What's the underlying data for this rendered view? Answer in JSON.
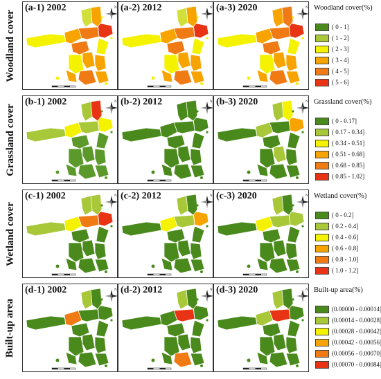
{
  "rows": [
    {
      "label": "Woodland cover",
      "panels": [
        {
          "title": "(a-1) 2002",
          "colors": [
            "#f5f200",
            "#f7a400",
            "#f07a14",
            "#e83414",
            "#f7a400",
            "#d2df3a",
            "#f5f200",
            "#f07a14",
            "#f7a400",
            "#f7a400",
            "#f5f200",
            "#f07a14",
            "#f7a400",
            "#f7a400"
          ]
        },
        {
          "title": "(a-2) 2012",
          "colors": [
            "#f5f200",
            "#f7a400",
            "#f07a14",
            "#e83414",
            "#f7a400",
            "#d2df3a",
            "#f5f200",
            "#f07a14",
            "#f7a400",
            "#f7a400",
            "#f5f200",
            "#f07a14",
            "#f7a400",
            "#f7a400"
          ]
        },
        {
          "title": "(a-3) 2020",
          "colors": [
            "#f5f200",
            "#f7a400",
            "#f07a14",
            "#e83414",
            "#f07a14",
            "#f7a400",
            "#f5f200",
            "#f07a14",
            "#f7a400",
            "#f7a400",
            "#f5f200",
            "#f07a14",
            "#f7a400",
            "#f7a400"
          ]
        }
      ],
      "legend_title": "Woodland cover(%)",
      "legend": [
        {
          "label": "( 0 - 1]",
          "color": "#4a8a1c"
        },
        {
          "label": "( 1 - 2]",
          "color": "#a8c83a"
        },
        {
          "label": "( 2 - 3]",
          "color": "#f5f200"
        },
        {
          "label": "( 3 - 4]",
          "color": "#f7a400"
        },
        {
          "label": "( 4 - 5]",
          "color": "#f07a14"
        },
        {
          "label": "( 5 - 6]",
          "color": "#e83414"
        }
      ]
    },
    {
      "label": "Grassland cover",
      "panels": [
        {
          "title": "(b-1) 2002",
          "colors": [
            "#a8c83a",
            "#f5f200",
            "#a8c83a",
            "#f5f200",
            "#e83414",
            "#a8c83a",
            "#5b9a2a",
            "#5b9a2a",
            "#5b9a2a",
            "#5b9a2a",
            "#5b9a2a",
            "#5b9a2a",
            "#5b9a2a",
            "#5b9a2a"
          ]
        },
        {
          "title": "(b-2) 2012",
          "colors": [
            "#4a8a1c",
            "#4a8a1c",
            "#4a8a1c",
            "#4a8a1c",
            "#4a8a1c",
            "#4a8a1c",
            "#4a8a1c",
            "#4a8a1c",
            "#4a8a1c",
            "#4a8a1c",
            "#4a8a1c",
            "#4a8a1c",
            "#4a8a1c",
            "#4a8a1c"
          ]
        },
        {
          "title": "(b-3) 2020",
          "colors": [
            "#4a8a1c",
            "#a8c83a",
            "#4a8a1c",
            "#f7a400",
            "#f5f200",
            "#a8c83a",
            "#4a8a1c",
            "#4a8a1c",
            "#a8c83a",
            "#4a8a1c",
            "#4a8a1c",
            "#4a8a1c",
            "#4a8a1c",
            "#4a8a1c"
          ]
        }
      ],
      "legend_title": "Grassland cover(%)",
      "legend": [
        {
          "label": "( 0 - 0.17]",
          "color": "#4a8a1c"
        },
        {
          "label": "( 0.17 - 0.34]",
          "color": "#a8c83a"
        },
        {
          "label": "( 0.34 - 0.51]",
          "color": "#f5f200"
        },
        {
          "label": "( 0.51 - 0.68]",
          "color": "#f7a400"
        },
        {
          "label": "( 0.68 - 0.85]",
          "color": "#f07a14"
        },
        {
          "label": "( 0.85 - 1.02]",
          "color": "#e83414"
        }
      ]
    },
    {
      "label": "Wetland cover",
      "panels": [
        {
          "title": "(c-1) 2002",
          "colors": [
            "#a8c83a",
            "#f5f200",
            "#f07a14",
            "#e83414",
            "#a8c83a",
            "#a8c83a",
            "#4a8a1c",
            "#4a8a1c",
            "#4a8a1c",
            "#4a8a1c",
            "#4a8a1c",
            "#4a8a1c",
            "#4a8a1c",
            "#4a8a1c"
          ]
        },
        {
          "title": "(c-2) 2012",
          "colors": [
            "#4a8a1c",
            "#f5f200",
            "#a8c83a",
            "#f7a400",
            "#4a8a1c",
            "#a8c83a",
            "#4a8a1c",
            "#4a8a1c",
            "#4a8a1c",
            "#4a8a1c",
            "#4a8a1c",
            "#4a8a1c",
            "#4a8a1c",
            "#4a8a1c"
          ]
        },
        {
          "title": "(c-3) 2020",
          "colors": [
            "#4a8a1c",
            "#f5f200",
            "#a8c83a",
            "#a8c83a",
            "#4a8a1c",
            "#a8c83a",
            "#4a8a1c",
            "#4a8a1c",
            "#4a8a1c",
            "#4a8a1c",
            "#4a8a1c",
            "#4a8a1c",
            "#4a8a1c",
            "#4a8a1c"
          ]
        }
      ],
      "legend_title": "Wetland cover(%)",
      "legend": [
        {
          "label": "( 0 - 0.2]",
          "color": "#4a8a1c"
        },
        {
          "label": "( 0.2 - 0.4]",
          "color": "#a8c83a"
        },
        {
          "label": "( 0.4 - 0.6]",
          "color": "#f5f200"
        },
        {
          "label": "( 0.6 - 0.8]",
          "color": "#f7a400"
        },
        {
          "label": "( 0.8 - 1.0]",
          "color": "#f07a14"
        },
        {
          "label": "( 1.0 - 1.2]",
          "color": "#e83414"
        }
      ]
    },
    {
      "label": "Built-up area",
      "panels": [
        {
          "title": "(d-1) 2002",
          "colors": [
            "#4a8a1c",
            "#f07a14",
            "#4a8a1c",
            "#4a8a1c",
            "#4a8a1c",
            "#a8c83a",
            "#4a8a1c",
            "#4a8a1c",
            "#4a8a1c",
            "#4a8a1c",
            "#4a8a1c",
            "#4a8a1c",
            "#4a8a1c",
            "#4a8a1c"
          ]
        },
        {
          "title": "(d-2) 2012",
          "colors": [
            "#4a8a1c",
            "#4a8a1c",
            "#e83414",
            "#4a8a1c",
            "#4a8a1c",
            "#a8c83a",
            "#4a8a1c",
            "#4a8a1c",
            "#4a8a1c",
            "#4a8a1c",
            "#4a8a1c",
            "#f07a14",
            "#4a8a1c",
            "#4a8a1c"
          ]
        },
        {
          "title": "(d-3) 2020",
          "colors": [
            "#4a8a1c",
            "#a8c83a",
            "#e83414",
            "#4a8a1c",
            "#4a8a1c",
            "#a8c83a",
            "#4a8a1c",
            "#4a8a1c",
            "#4a8a1c",
            "#4a8a1c",
            "#4a8a1c",
            "#4a8a1c",
            "#4a8a1c",
            "#4a8a1c"
          ]
        }
      ],
      "legend_title": "Built-up area(%)",
      "legend": [
        {
          "label": "(0.00000 - 0.00014]",
          "color": "#4a8a1c"
        },
        {
          "label": "(0.00014 - 0.00028]",
          "color": "#a8c83a"
        },
        {
          "label": "(0.00028 - 0.00042]",
          "color": "#f5f200"
        },
        {
          "label": "(0.00042 - 0.00056]",
          "color": "#f7a400"
        },
        {
          "label": "(0.00056 - 0.00070]",
          "color": "#f07a14"
        },
        {
          "label": "(0.00070 - 0.00084]",
          "color": "#e83414"
        }
      ]
    }
  ],
  "north_letter": "N"
}
